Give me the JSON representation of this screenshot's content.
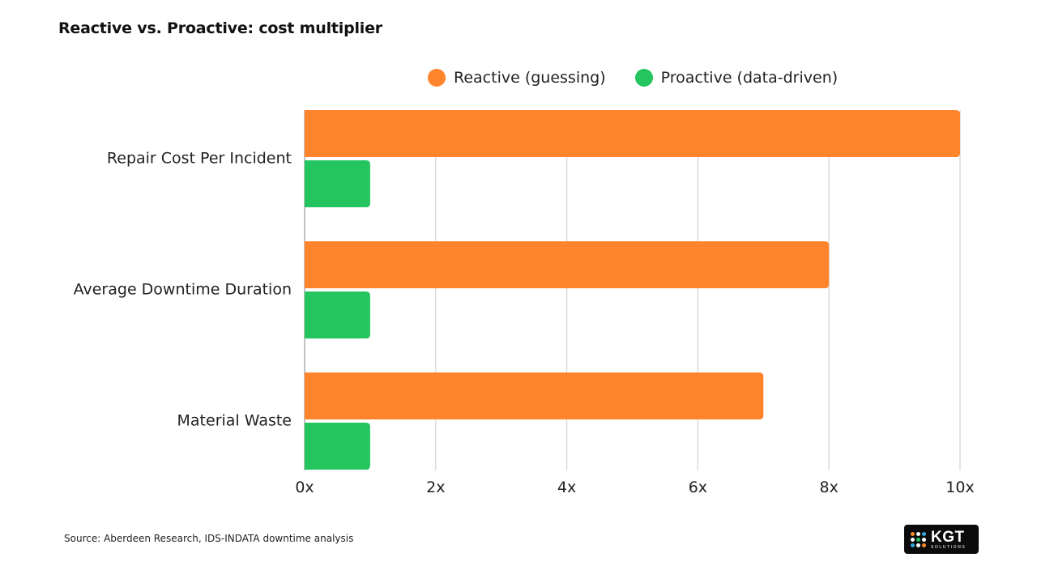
{
  "chart_data": {
    "type": "bar",
    "orientation": "horizontal",
    "title": "Reactive vs. Proactive: cost multiplier",
    "categories": [
      "Repair Cost Per Incident",
      "Average Downtime Duration",
      "Material Waste"
    ],
    "series": [
      {
        "name": "Reactive (guessing)",
        "values": [
          10,
          8,
          7
        ],
        "color": "#ff842b"
      },
      {
        "name": "Proactive (data-driven)",
        "values": [
          1,
          1,
          1
        ],
        "color": "#24c45e"
      }
    ],
    "x_ticks": [
      0,
      2,
      4,
      6,
      8,
      10
    ],
    "x_tick_labels": [
      "0x",
      "2x",
      "4x",
      "6x",
      "8x",
      "10x"
    ],
    "xlim": [
      0,
      10
    ],
    "xlabel": "",
    "ylabel": "",
    "grid": "vertical",
    "legend": "top"
  },
  "footer": {
    "source": "Source: Aberdeen Research, IDS-INDATA downtime analysis",
    "logo_text": "KGT",
    "logo_subtext": "SOLUTIONS"
  }
}
